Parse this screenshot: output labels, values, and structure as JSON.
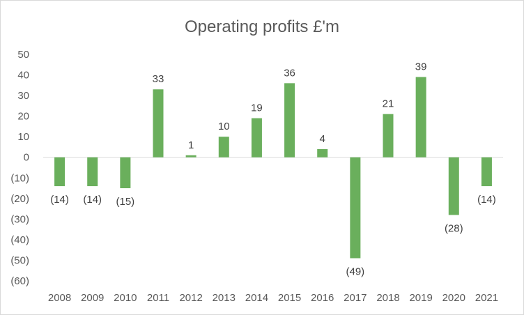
{
  "chart_data": {
    "type": "bar",
    "title": "Operating profits £'m",
    "xlabel": "",
    "ylabel": "",
    "categories": [
      "2008",
      "2009",
      "2010",
      "2011",
      "2012",
      "2013",
      "2014",
      "2015",
      "2016",
      "2017",
      "2018",
      "2019",
      "2020",
      "2021"
    ],
    "values": [
      -14,
      -14,
      -15,
      33,
      1,
      10,
      19,
      36,
      4,
      -49,
      21,
      39,
      -28,
      -14
    ],
    "data_labels": [
      "(14)",
      "(14)",
      "(15)",
      "33",
      "1",
      "10",
      "19",
      "36",
      "4",
      "(49)",
      "21",
      "39",
      "(28)",
      "(14)"
    ],
    "ylim": [
      -60,
      50
    ],
    "yticks": [
      50,
      40,
      30,
      20,
      10,
      0,
      -10,
      -20,
      -30,
      -40,
      -50,
      -60
    ],
    "ytick_labels": [
      "50",
      "40",
      "30",
      "20",
      "10",
      "0",
      "(10)",
      "(20)",
      "(30)",
      "(40)",
      "(50)",
      "(60)"
    ],
    "grid": false,
    "legend": "none",
    "colors": {
      "bar": "#6aaf5c",
      "zero_line": "#d9d9d9",
      "border": "#d9d9d9"
    }
  }
}
